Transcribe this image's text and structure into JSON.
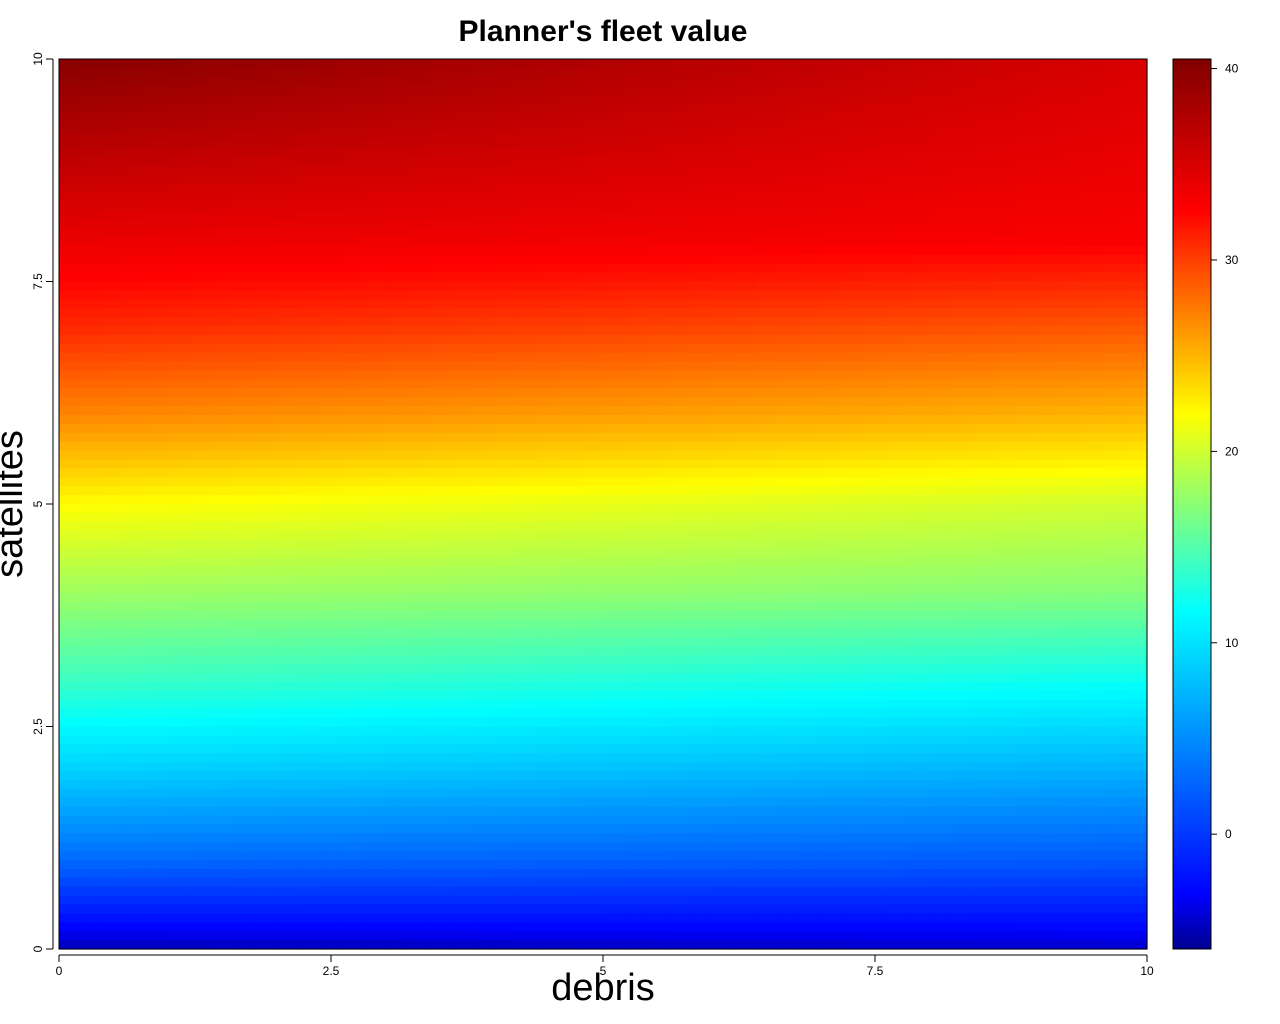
{
  "chart_data": {
    "type": "heatmap",
    "title": "Planner's fleet value",
    "xlabel": "debris",
    "ylabel": "satellites",
    "xlim": [
      0,
      10
    ],
    "ylim": [
      0,
      10
    ],
    "x_ticks": [
      {
        "value": 0,
        "label": "0"
      },
      {
        "value": 2.5,
        "label": "2.5"
      },
      {
        "value": 5,
        "label": "5"
      },
      {
        "value": 7.5,
        "label": "7.5"
      },
      {
        "value": 10,
        "label": "10"
      }
    ],
    "y_ticks": [
      {
        "value": 0,
        "label": "0"
      },
      {
        "value": 2.5,
        "label": "2.5"
      },
      {
        "value": 5,
        "label": "5"
      },
      {
        "value": 7.5,
        "label": "7.5"
      },
      {
        "value": 10,
        "label": "10"
      }
    ],
    "colorbar": {
      "range": [
        -6,
        40.5
      ],
      "ticks": [
        {
          "value": 0,
          "label": "0"
        },
        {
          "value": 10,
          "label": "10"
        },
        {
          "value": 20,
          "label": "20"
        },
        {
          "value": 30,
          "label": "30"
        },
        {
          "value": 40,
          "label": "40"
        }
      ],
      "colormap": [
        "#00008F",
        "#0000FF",
        "#00FFFF",
        "#FFFF00",
        "#FF0000",
        "#800000"
      ]
    },
    "value_grid": {
      "satellites": [
        0,
        1,
        2,
        3,
        4,
        5,
        6,
        7,
        8,
        9,
        10
      ],
      "value_at_debris_0": [
        -5,
        3,
        9,
        14,
        18,
        22,
        27,
        31,
        34,
        37,
        40
      ],
      "value_at_debris_10": [
        -4.5,
        2,
        7,
        12,
        17,
        20,
        25,
        29,
        33,
        34,
        35
      ]
    },
    "grid": false
  }
}
